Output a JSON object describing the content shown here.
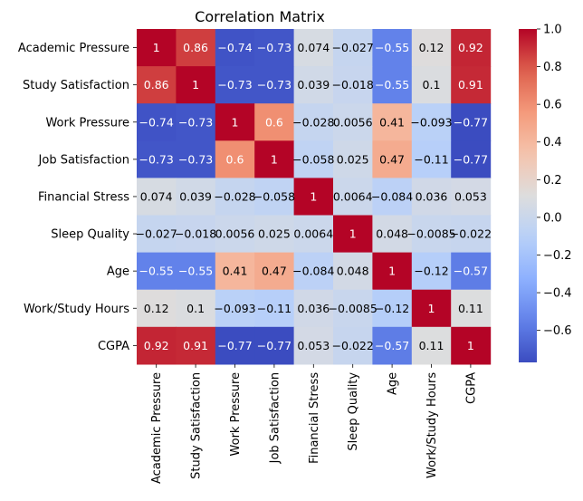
{
  "chart_data": {
    "type": "heatmap",
    "title": "Correlation Matrix",
    "labels": [
      "Academic Pressure",
      "Study Satisfaction",
      "Work Pressure",
      "Job Satisfaction",
      "Financial Stress",
      "Sleep Quality",
      "Age",
      "Work/Study Hours",
      "CGPA"
    ],
    "values": [
      [
        1,
        0.86,
        -0.74,
        -0.73,
        0.074,
        -0.027,
        -0.55,
        0.12,
        0.92
      ],
      [
        0.86,
        1,
        -0.73,
        -0.73,
        0.039,
        -0.018,
        -0.55,
        0.1,
        0.91
      ],
      [
        -0.74,
        -0.73,
        1,
        0.6,
        -0.028,
        0.0056,
        0.41,
        -0.093,
        -0.77
      ],
      [
        -0.73,
        -0.73,
        0.6,
        1,
        -0.058,
        0.025,
        0.47,
        -0.11,
        -0.77
      ],
      [
        0.074,
        0.039,
        -0.028,
        -0.058,
        1,
        0.0064,
        -0.084,
        0.036,
        0.053
      ],
      [
        -0.027,
        -0.018,
        0.0056,
        0.025,
        0.0064,
        1,
        0.048,
        -0.0085,
        -0.022
      ],
      [
        -0.55,
        -0.55,
        0.41,
        0.47,
        -0.084,
        0.048,
        1,
        -0.12,
        -0.57
      ],
      [
        0.12,
        0.1,
        -0.093,
        -0.11,
        0.036,
        -0.0085,
        -0.12,
        1,
        0.11
      ],
      [
        0.92,
        0.91,
        -0.77,
        -0.77,
        0.053,
        -0.022,
        -0.57,
        0.11,
        1
      ]
    ],
    "colormap": "coolwarm",
    "vmin": -0.77,
    "vmax": 1,
    "colorbar_ticks": [
      1.0,
      0.8,
      0.6,
      0.4,
      0.2,
      0.0,
      -0.2,
      -0.4,
      -0.6
    ],
    "colorbar_tick_labels": [
      "1.0",
      "0.8",
      "0.6",
      "0.4",
      "0.2",
      "0.0",
      "−0.2",
      "−0.4",
      "−0.6"
    ],
    "annotations": true,
    "grid": false,
    "colorbar": "right"
  }
}
